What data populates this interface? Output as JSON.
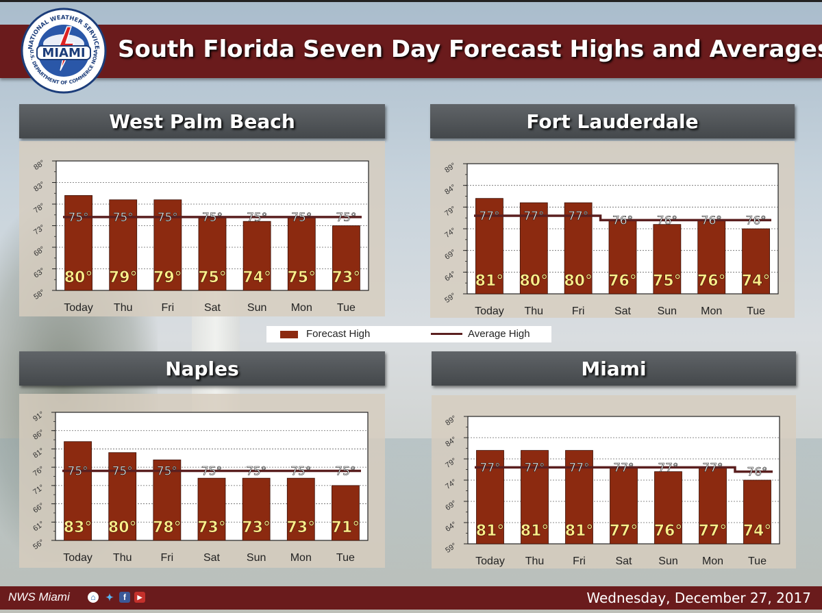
{
  "header": {
    "title": "South Florida Seven Day Forecast Highs and Averages",
    "logo_text": "MIAMI",
    "logo_ring_top": "NATIONAL WEATHER SERVICE",
    "logo_ring_bottom": "U.S. DEPARTMENT OF COMMERCE NOAA"
  },
  "legend": {
    "forecast": "Forecast High",
    "average": "Average High"
  },
  "colors": {
    "bar": "#8c2a10",
    "avg_line": "#5a1f1f",
    "banner": "#6a1b1c",
    "value_text": "#ffef8a"
  },
  "footer": {
    "left": "NWS Miami",
    "date": "Wednesday, December 27, 2017",
    "icons": [
      "home-icon",
      "twitter-icon",
      "facebook-icon",
      "youtube-icon"
    ]
  },
  "chart_data": [
    {
      "title": "West Palm Beach",
      "type": "bar",
      "categories": [
        "Today",
        "Thu",
        "Fri",
        "Sat",
        "Sun",
        "Mon",
        "Tue"
      ],
      "series": [
        {
          "name": "Forecast High",
          "values": [
            80,
            79,
            79,
            75,
            74,
            75,
            73
          ]
        },
        {
          "name": "Average High",
          "values": [
            75,
            75,
            75,
            75,
            75,
            75,
            75
          ]
        }
      ],
      "yticks": [
        "58°",
        "63°",
        "68°",
        "73°",
        "78°",
        "83°",
        "88°"
      ],
      "ylim": [
        58,
        88
      ],
      "grid": true
    },
    {
      "title": "Fort Lauderdale",
      "type": "bar",
      "categories": [
        "Today",
        "Thu",
        "Fri",
        "Sat",
        "Sun",
        "Mon",
        "Tue"
      ],
      "series": [
        {
          "name": "Forecast High",
          "values": [
            81,
            80,
            80,
            76,
            75,
            76,
            74
          ]
        },
        {
          "name": "Average High",
          "values": [
            77,
            77,
            77,
            76,
            76,
            76,
            76
          ]
        }
      ],
      "yticks": [
        "59°",
        "64°",
        "69°",
        "74°",
        "79°",
        "84°",
        "89°"
      ],
      "ylim": [
        59,
        89
      ],
      "grid": true
    },
    {
      "title": "Naples",
      "type": "bar",
      "categories": [
        "Today",
        "Thu",
        "Fri",
        "Sat",
        "Sun",
        "Mon",
        "Tue"
      ],
      "series": [
        {
          "name": "Forecast High",
          "values": [
            83,
            80,
            78,
            73,
            73,
            73,
            71
          ]
        },
        {
          "name": "Average High",
          "values": [
            75,
            75,
            75,
            75,
            75,
            75,
            75
          ]
        }
      ],
      "yticks": [
        "56°",
        "61°",
        "66°",
        "71°",
        "76°",
        "81°",
        "86°",
        "91°"
      ],
      "ylim": [
        56,
        91
      ],
      "grid": true
    },
    {
      "title": "Miami",
      "type": "bar",
      "categories": [
        "Today",
        "Thu",
        "Fri",
        "Sat",
        "Sun",
        "Mon",
        "Tue"
      ],
      "series": [
        {
          "name": "Forecast High",
          "values": [
            81,
            81,
            81,
            77,
            76,
            77,
            74
          ]
        },
        {
          "name": "Average High",
          "values": [
            77,
            77,
            77,
            77,
            77,
            77,
            76
          ]
        }
      ],
      "yticks": [
        "59°",
        "64°",
        "69°",
        "74°",
        "79°",
        "84°",
        "89°"
      ],
      "ylim": [
        59,
        89
      ],
      "grid": true
    }
  ]
}
